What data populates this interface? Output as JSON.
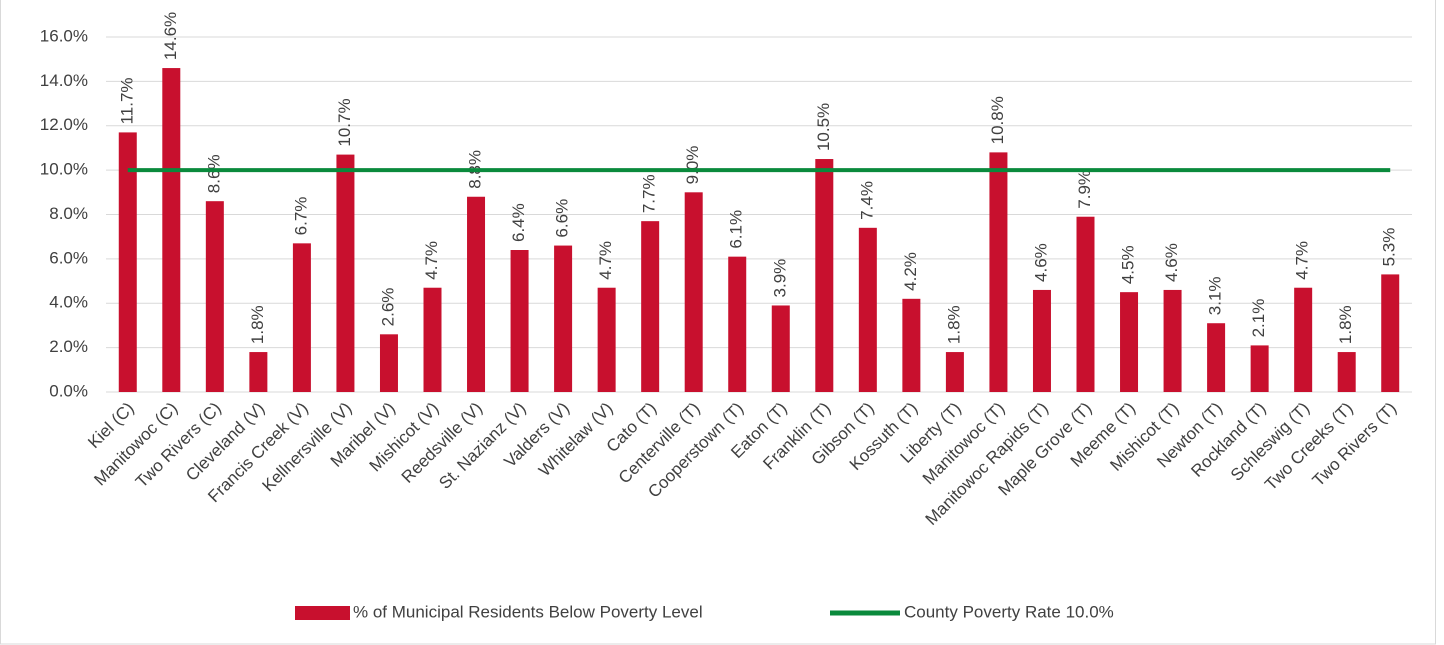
{
  "chart_data": {
    "type": "bar",
    "categories": [
      "Kiel (C)",
      "Manitowoc (C)",
      "Two Rivers (C)",
      "Cleveland (V)",
      "Francis Creek (V)",
      "Kellnersville (V)",
      "Maribel (V)",
      "Mishicot (V)",
      "Reedsville (V)",
      "St. Nazianz (V)",
      "Valders (V)",
      "Whitelaw (V)",
      "Cato (T)",
      "Centerville (T)",
      "Cooperstown (T)",
      "Eaton (T)",
      "Franklin (T)",
      "Gibson (T)",
      "Kossuth (T)",
      "Liberty (T)",
      "Manitowoc (T)",
      "Manitowoc Rapids (T)",
      "Maple Grove (T)",
      "Meeme (T)",
      "Mishicot (T)",
      "Newton (T)",
      "Rockland (T)",
      "Schleswig (T)",
      "Two Creeks (T)",
      "Two Rivers (T)"
    ],
    "series": [
      {
        "name": "% of Municipal Residents Below Poverty Level",
        "type": "bar",
        "color": "#c8102e",
        "values": [
          11.7,
          14.6,
          8.6,
          1.8,
          6.7,
          10.7,
          2.6,
          4.7,
          8.8,
          6.4,
          6.6,
          4.7,
          7.7,
          9.0,
          6.1,
          3.9,
          10.5,
          7.4,
          4.2,
          1.8,
          10.8,
          4.6,
          7.9,
          4.5,
          4.6,
          3.1,
          2.1,
          4.7,
          1.8,
          5.3
        ],
        "value_labels": [
          "11.7%",
          "14.6%",
          "8.6%",
          "1.8%",
          "6.7%",
          "10.7%",
          "2.6%",
          "4.7%",
          "8.8%",
          "6.4%",
          "6.6%",
          "4.7%",
          "7.7%",
          "9.0%",
          "6.1%",
          "3.9%",
          "10.5%",
          "7.4%",
          "4.2%",
          "1.8%",
          "10.8%",
          "4.6%",
          "7.9%",
          "4.5%",
          "4.6%",
          "3.1%",
          "2.1%",
          "4.7%",
          "1.8%",
          "5.3%"
        ]
      },
      {
        "name": "County Poverty Rate 10.0%",
        "type": "line",
        "color": "#0a8a3c",
        "values": [
          10,
          10,
          10,
          10,
          10,
          10,
          10,
          10,
          10,
          10,
          10,
          10,
          10,
          10,
          10,
          10,
          10,
          10,
          10,
          10,
          10,
          10,
          10,
          10,
          10,
          10,
          10,
          10,
          10,
          10
        ]
      }
    ],
    "ylim": [
      0,
      16
    ],
    "yticks": [
      {
        "value": 0,
        "label": "0.0%"
      },
      {
        "value": 2,
        "label": "2.0%"
      },
      {
        "value": 4,
        "label": "4.0%"
      },
      {
        "value": 6,
        "label": "6.0%"
      },
      {
        "value": 8,
        "label": "8.0%"
      },
      {
        "value": 10,
        "label": "10.0%"
      },
      {
        "value": 12,
        "label": "12.0%"
      },
      {
        "value": 14,
        "label": "14.0%"
      },
      {
        "value": 16,
        "label": "16.0%"
      }
    ],
    "grid": true,
    "legend": "bottom"
  }
}
